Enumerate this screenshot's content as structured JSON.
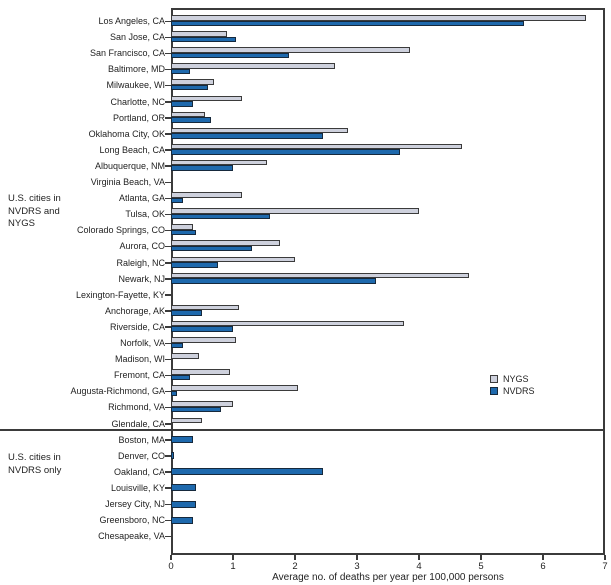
{
  "chart_data": {
    "type": "bar",
    "orientation": "horizontal",
    "title": "",
    "xlabel": "Average no. of deaths per year per 100,000 persons",
    "ylabel": "",
    "xlim": [
      0,
      7
    ],
    "xticks": [
      "0",
      "1",
      "2",
      "3",
      "4",
      "5",
      "6",
      "7"
    ],
    "grid": false,
    "legend_position": "right-middle",
    "legend": [
      "NYGS",
      "NVDRS"
    ],
    "series_colors": {
      "NYGS": "#ced1dd",
      "NVDRS": "#1e69ad"
    },
    "groups": [
      {
        "label": "U.S. cities in\nNVDRS and\nNYGS",
        "series": [
          "NYGS",
          "NVDRS"
        ],
        "rows": [
          {
            "city": "Los Angeles, CA",
            "NYGS": 6.7,
            "NVDRS": 5.7
          },
          {
            "city": "San Jose, CA",
            "NYGS": 0.9,
            "NVDRS": 1.05
          },
          {
            "city": "San Francisco, CA",
            "NYGS": 3.85,
            "NVDRS": 1.9
          },
          {
            "city": "Baltimore, MD",
            "NYGS": 2.65,
            "NVDRS": 0.3
          },
          {
            "city": "Milwaukee, WI",
            "NYGS": 0.7,
            "NVDRS": 0.6
          },
          {
            "city": "Charlotte, NC",
            "NYGS": 1.15,
            "NVDRS": 0.35
          },
          {
            "city": "Portland, OR",
            "NYGS": 0.55,
            "NVDRS": 0.65
          },
          {
            "city": "Oklahoma City, OK",
            "NYGS": 2.85,
            "NVDRS": 2.45
          },
          {
            "city": "Long Beach, CA",
            "NYGS": 4.7,
            "NVDRS": 3.7
          },
          {
            "city": "Albuquerque, NM",
            "NYGS": 1.55,
            "NVDRS": 1.0
          },
          {
            "city": "Virginia Beach, VA",
            "NYGS": 0,
            "NVDRS": 0
          },
          {
            "city": "Atlanta, GA",
            "NYGS": 1.15,
            "NVDRS": 0.2
          },
          {
            "city": "Tulsa, OK",
            "NYGS": 4.0,
            "NVDRS": 1.6
          },
          {
            "city": "Colorado Springs, CO",
            "NYGS": 0.35,
            "NVDRS": 0.4
          },
          {
            "city": "Aurora, CO",
            "NYGS": 1.75,
            "NVDRS": 1.3
          },
          {
            "city": "Raleigh, NC",
            "NYGS": 2.0,
            "NVDRS": 0.75
          },
          {
            "city": "Newark, NJ",
            "NYGS": 4.8,
            "NVDRS": 3.3
          },
          {
            "city": "Lexington-Fayette, KY",
            "NYGS": 0,
            "NVDRS": 0
          },
          {
            "city": "Anchorage, AK",
            "NYGS": 1.1,
            "NVDRS": 0.5
          },
          {
            "city": "Riverside, CA",
            "NYGS": 3.75,
            "NVDRS": 1.0
          },
          {
            "city": "Norfolk, VA",
            "NYGS": 1.05,
            "NVDRS": 0.2
          },
          {
            "city": "Madison, WI",
            "NYGS": 0.45,
            "NVDRS": 0
          },
          {
            "city": "Fremont, CA",
            "NYGS": 0.95,
            "NVDRS": 0.3
          },
          {
            "city": "Augusta-Richmond, GA",
            "NYGS": 2.05,
            "NVDRS": 0.1
          },
          {
            "city": "Richmond, VA",
            "NYGS": 1.0,
            "NVDRS": 0.8
          },
          {
            "city": "Glendale, CA",
            "NYGS": 0.5,
            "NVDRS": 0
          }
        ]
      },
      {
        "label": "U.S. cities in\nNVDRS only",
        "series": [
          "NVDRS"
        ],
        "rows": [
          {
            "city": "Boston, MA",
            "NVDRS": 0.35
          },
          {
            "city": "Denver, CO",
            "NVDRS": 0.05
          },
          {
            "city": "Oakland, CA",
            "NVDRS": 2.45
          },
          {
            "city": "Louisville, KY",
            "NVDRS": 0.4
          },
          {
            "city": "Jersey City, NJ",
            "NVDRS": 0.4
          },
          {
            "city": "Greensboro, NC",
            "NVDRS": 0.35
          },
          {
            "city": "Chesapeake, VA",
            "NVDRS": 0
          }
        ]
      }
    ]
  },
  "legend": {
    "nygs_label": "NYGS",
    "nvdrs_label": "NVDRS"
  }
}
